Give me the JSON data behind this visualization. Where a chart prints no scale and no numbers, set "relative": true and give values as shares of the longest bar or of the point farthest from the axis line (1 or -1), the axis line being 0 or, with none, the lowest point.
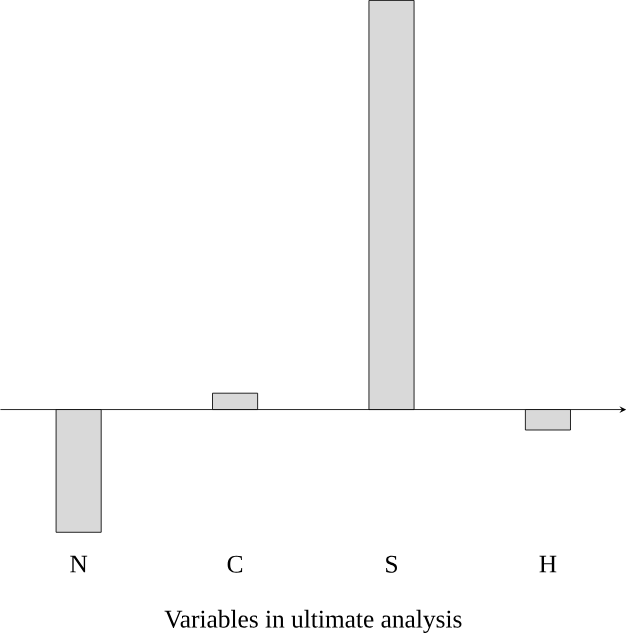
{
  "chart_data": {
    "type": "bar",
    "xlabel": "Variables in ultimate analysis",
    "categories": [
      "N",
      "C",
      "S",
      "H"
    ],
    "values": [
      -0.3,
      0.04,
      1,
      -0.05
    ],
    "color": "#000000",
    "relative": true
  }
}
